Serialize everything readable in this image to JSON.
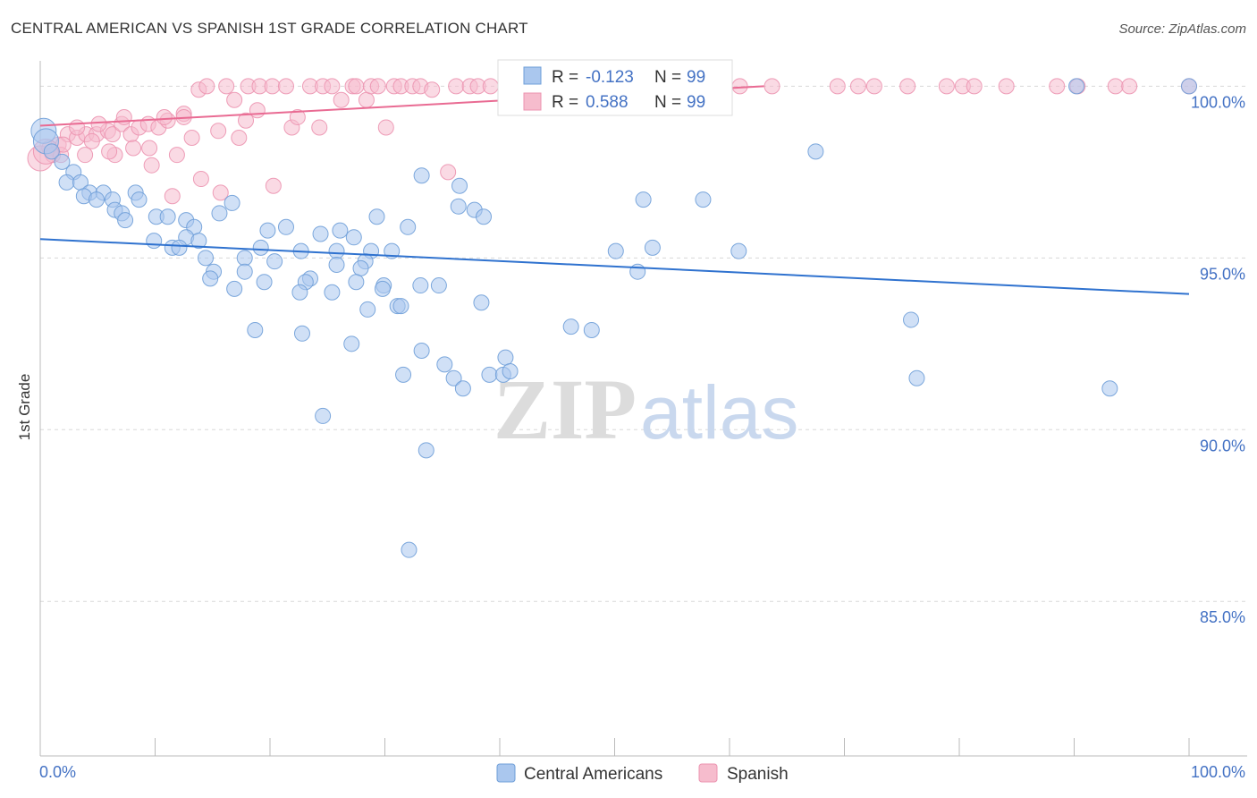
{
  "title": "CENTRAL AMERICAN VS SPANISH 1ST GRADE CORRELATION CHART",
  "source": "Source: ZipAtlas.com",
  "watermark": {
    "zip": "ZIP",
    "atlas": "atlas"
  },
  "colors": {
    "blue_fill": "#aac7ee",
    "blue_stroke": "#6f9fd8",
    "blue_line": "#2f72cf",
    "pink_fill": "#f6bccd",
    "pink_stroke": "#ec93b0",
    "pink_line": "#e96b93",
    "grid": "#d8d8d8",
    "tick_text": "#4472c4"
  },
  "legend": {
    "rows": [
      {
        "r_label": "R =",
        "r_value": "-0.123",
        "n_label": "N =",
        "n_value": "99"
      },
      {
        "r_label": "R =",
        "r_value": "0.588",
        "n_label": "N =",
        "n_value": "99"
      }
    ]
  },
  "bottom_legend": [
    "Central Americans",
    "Spanish"
  ],
  "chart_data": {
    "type": "scatter",
    "title": "CENTRAL AMERICAN VS SPANISH 1ST GRADE CORRELATION CHART",
    "xlabel": "",
    "ylabel": "1st Grade",
    "xlim": [
      0,
      100
    ],
    "ylim": [
      80.5,
      101.0
    ],
    "x_tick_labels": [
      "0.0%",
      "100.0%"
    ],
    "y_ticks": [
      85,
      90,
      95,
      100
    ],
    "y_tick_labels": [
      "85.0%",
      "90.0%",
      "95.0%",
      "100.0%"
    ],
    "grid": true,
    "series": [
      {
        "name": "Central Americans",
        "color": "#aac7ee",
        "trend": {
          "x": [
            0,
            100
          ],
          "y": [
            95.55,
            93.95
          ]
        },
        "points": [
          [
            0.3,
            98.7
          ],
          [
            0.5,
            98.4
          ],
          [
            1.0,
            98.1
          ],
          [
            1.9,
            97.8
          ],
          [
            2.9,
            97.5
          ],
          [
            2.3,
            97.2
          ],
          [
            3.5,
            97.2
          ],
          [
            4.3,
            96.9
          ],
          [
            3.8,
            96.8
          ],
          [
            5.5,
            96.9
          ],
          [
            4.9,
            96.7
          ],
          [
            6.3,
            96.7
          ],
          [
            8.3,
            96.9
          ],
          [
            8.6,
            96.7
          ],
          [
            6.5,
            96.4
          ],
          [
            7.1,
            96.3
          ],
          [
            7.4,
            96.1
          ],
          [
            10.1,
            96.2
          ],
          [
            11.1,
            96.2
          ],
          [
            12.7,
            96.1
          ],
          [
            13.4,
            95.9
          ],
          [
            15.6,
            96.3
          ],
          [
            16.7,
            96.6
          ],
          [
            12.7,
            95.6
          ],
          [
            13.8,
            95.5
          ],
          [
            19.8,
            95.8
          ],
          [
            21.4,
            95.9
          ],
          [
            24.4,
            95.7
          ],
          [
            26.1,
            95.8
          ],
          [
            27.3,
            95.6
          ],
          [
            9.9,
            95.5
          ],
          [
            11.5,
            95.3
          ],
          [
            12.1,
            95.3
          ],
          [
            22.7,
            95.2
          ],
          [
            19.2,
            95.3
          ],
          [
            25.8,
            95.2
          ],
          [
            28.8,
            95.2
          ],
          [
            30.6,
            95.2
          ],
          [
            14.4,
            95.0
          ],
          [
            17.8,
            95.0
          ],
          [
            20.4,
            94.9
          ],
          [
            25.8,
            94.8
          ],
          [
            28.3,
            94.9
          ],
          [
            27.9,
            94.7
          ],
          [
            15.1,
            94.6
          ],
          [
            17.8,
            94.6
          ],
          [
            14.8,
            94.4
          ],
          [
            19.5,
            94.3
          ],
          [
            23.5,
            94.4
          ],
          [
            27.5,
            94.3
          ],
          [
            23.1,
            94.3
          ],
          [
            29.9,
            94.2
          ],
          [
            33.1,
            94.2
          ],
          [
            34.7,
            94.2
          ],
          [
            16.9,
            94.1
          ],
          [
            22.6,
            94.0
          ],
          [
            25.4,
            94.0
          ],
          [
            29.8,
            94.1
          ],
          [
            28.5,
            93.5
          ],
          [
            31.1,
            93.6
          ],
          [
            38.4,
            93.7
          ],
          [
            31.4,
            93.6
          ],
          [
            18.7,
            92.9
          ],
          [
            22.8,
            92.8
          ],
          [
            46.2,
            93.0
          ],
          [
            48.0,
            92.9
          ],
          [
            52.0,
            94.6
          ],
          [
            50.1,
            95.2
          ],
          [
            53.3,
            95.3
          ],
          [
            60.8,
            95.2
          ],
          [
            27.1,
            92.5
          ],
          [
            33.2,
            92.3
          ],
          [
            35.2,
            91.9
          ],
          [
            40.5,
            92.1
          ],
          [
            31.6,
            91.6
          ],
          [
            36.0,
            91.5
          ],
          [
            36.8,
            91.2
          ],
          [
            39.1,
            91.6
          ],
          [
            40.3,
            91.6
          ],
          [
            40.9,
            91.7
          ],
          [
            76.3,
            91.5
          ],
          [
            75.8,
            93.2
          ],
          [
            93.1,
            91.2
          ],
          [
            24.6,
            90.4
          ],
          [
            33.6,
            89.4
          ],
          [
            32.1,
            86.5
          ],
          [
            36.4,
            96.5
          ],
          [
            37.8,
            96.4
          ],
          [
            38.6,
            96.2
          ],
          [
            57.7,
            96.7
          ],
          [
            36.5,
            97.1
          ],
          [
            33.2,
            97.4
          ],
          [
            29.3,
            96.2
          ],
          [
            32.0,
            95.9
          ],
          [
            52.5,
            96.7
          ],
          [
            59.2,
            100.0
          ],
          [
            67.5,
            98.1
          ],
          [
            100.0,
            100.0
          ],
          [
            90.2,
            100.0
          ]
        ]
      },
      {
        "name": "Spanish",
        "color": "#f6bccd",
        "trend": {
          "x": [
            0,
            63
          ],
          "y": [
            98.85,
            100.0
          ]
        },
        "points": [
          [
            0.0,
            97.9
          ],
          [
            0.8,
            98.2
          ],
          [
            1.6,
            98.3
          ],
          [
            2.4,
            98.6
          ],
          [
            3.2,
            98.5
          ],
          [
            4.0,
            98.6
          ],
          [
            4.9,
            98.6
          ],
          [
            5.9,
            98.7
          ],
          [
            6.3,
            98.6
          ],
          [
            7.1,
            98.9
          ],
          [
            7.9,
            98.6
          ],
          [
            8.6,
            98.8
          ],
          [
            9.4,
            98.9
          ],
          [
            10.3,
            98.8
          ],
          [
            11.1,
            99.0
          ],
          [
            11.9,
            98.0
          ],
          [
            12.5,
            99.2
          ],
          [
            13.2,
            98.5
          ],
          [
            13.8,
            99.9
          ],
          [
            14.5,
            100.0
          ],
          [
            15.5,
            98.7
          ],
          [
            16.2,
            100.0
          ],
          [
            16.9,
            99.6
          ],
          [
            17.3,
            98.5
          ],
          [
            18.1,
            100.0
          ],
          [
            18.9,
            99.3
          ],
          [
            19.1,
            100.0
          ],
          [
            20.2,
            100.0
          ],
          [
            21.4,
            100.0
          ],
          [
            21.9,
            98.8
          ],
          [
            22.4,
            99.1
          ],
          [
            23.5,
            100.0
          ],
          [
            24.6,
            100.0
          ],
          [
            24.3,
            98.8
          ],
          [
            25.4,
            100.0
          ],
          [
            26.2,
            99.6
          ],
          [
            27.2,
            100.0
          ],
          [
            27.5,
            100.0
          ],
          [
            28.4,
            99.6
          ],
          [
            28.8,
            100.0
          ],
          [
            29.4,
            100.0
          ],
          [
            30.1,
            98.8
          ],
          [
            30.8,
            100.0
          ],
          [
            31.4,
            100.0
          ],
          [
            32.4,
            100.0
          ],
          [
            33.1,
            100.0
          ],
          [
            34.1,
            99.9
          ],
          [
            35.5,
            97.5
          ],
          [
            36.2,
            100.0
          ],
          [
            37.4,
            100.0
          ],
          [
            38.1,
            100.0
          ],
          [
            39.2,
            100.0
          ],
          [
            40.9,
            99.4
          ],
          [
            42.6,
            100.0
          ],
          [
            44.3,
            100.0
          ],
          [
            46.1,
            100.0
          ],
          [
            47.9,
            100.0
          ],
          [
            49.7,
            100.0
          ],
          [
            51.5,
            100.0
          ],
          [
            53.2,
            100.0
          ],
          [
            55.1,
            100.0
          ],
          [
            57.0,
            100.0
          ],
          [
            59.4,
            100.0
          ],
          [
            60.9,
            100.0
          ],
          [
            63.7,
            100.0
          ],
          [
            69.4,
            100.0
          ],
          [
            71.2,
            100.0
          ],
          [
            72.6,
            100.0
          ],
          [
            75.5,
            100.0
          ],
          [
            78.9,
            100.0
          ],
          [
            80.3,
            100.0
          ],
          [
            81.3,
            100.0
          ],
          [
            84.1,
            100.0
          ],
          [
            88.5,
            100.0
          ],
          [
            90.3,
            100.0
          ],
          [
            93.6,
            100.0
          ],
          [
            94.8,
            100.0
          ],
          [
            100.0,
            100.0
          ],
          [
            1.1,
            98.0
          ],
          [
            3.9,
            98.0
          ],
          [
            6.5,
            98.0
          ],
          [
            8.1,
            98.2
          ],
          [
            9.7,
            97.7
          ],
          [
            11.5,
            96.8
          ],
          [
            14.0,
            97.3
          ],
          [
            15.7,
            96.9
          ],
          [
            17.9,
            99.0
          ],
          [
            20.3,
            97.1
          ],
          [
            7.3,
            99.1
          ],
          [
            9.5,
            98.2
          ],
          [
            10.8,
            99.1
          ],
          [
            12.5,
            99.1
          ],
          [
            3.2,
            98.8
          ],
          [
            5.1,
            98.9
          ],
          [
            1.8,
            98.0
          ],
          [
            0.5,
            98.1
          ],
          [
            2.0,
            98.3
          ],
          [
            4.5,
            98.4
          ],
          [
            6.0,
            98.1
          ]
        ]
      }
    ]
  }
}
